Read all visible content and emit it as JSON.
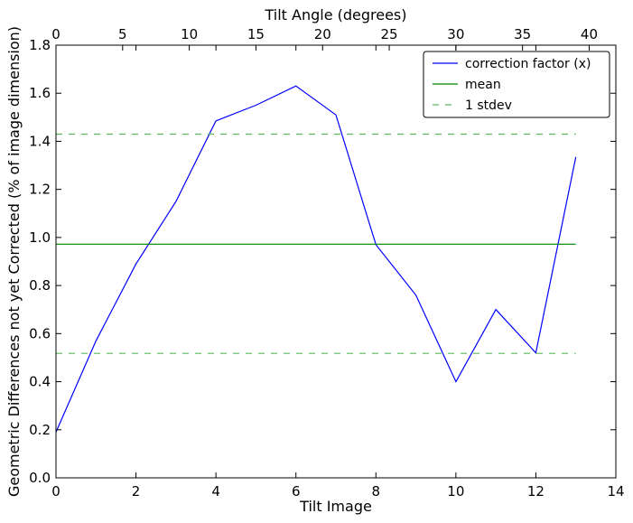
{
  "chart_data": {
    "type": "line",
    "xlabel": "Tilt Image",
    "ylabel": "Geometric Differences not yet Corrected (% of image dimension)",
    "top_xlabel": "Tilt Angle (degrees)",
    "xlim": [
      0,
      14
    ],
    "ylim": [
      0,
      1.8
    ],
    "top_xlim": [
      0,
      42
    ],
    "xticks": [
      0,
      2,
      4,
      6,
      8,
      10,
      12,
      14
    ],
    "yticks": [
      0.0,
      0.2,
      0.4,
      0.6,
      0.8,
      1.0,
      1.2,
      1.4,
      1.6,
      1.8
    ],
    "xtick_labels": [
      "0",
      "2",
      "4",
      "6",
      "8",
      "10",
      "12",
      "14"
    ],
    "ytick_labels": [
      "0.0",
      "0.2",
      "0.4",
      "0.6",
      "0.8",
      "1.0",
      "1.2",
      "1.4",
      "1.6",
      "1.8"
    ],
    "top_xticks": [
      0,
      5,
      10,
      15,
      20,
      25,
      30,
      35,
      40
    ],
    "top_xtick_labels": [
      "0",
      "5",
      "10",
      "15",
      "20",
      "25",
      "30",
      "35",
      "40"
    ],
    "grid": false,
    "legend_position": "top-right",
    "series": [
      {
        "name": "correction factor (x)",
        "color": "#0000ff",
        "style": "solid",
        "x": [
          0,
          1,
          2,
          3,
          4,
          5,
          6,
          7,
          8,
          9,
          10,
          11,
          12,
          13
        ],
        "y": [
          0.19,
          0.57,
          0.89,
          1.15,
          1.485,
          1.55,
          1.63,
          1.51,
          0.97,
          0.76,
          0.4,
          0.7,
          0.52,
          1.335
        ]
      },
      {
        "name": "mean",
        "color": "#008000",
        "style": "solid",
        "x": [
          0,
          13
        ],
        "y": [
          0.972,
          0.972
        ]
      },
      {
        "name": "1 stdev",
        "color": "#00a000",
        "style": "dashed",
        "x": [
          0,
          13
        ],
        "y": [
          1.43,
          1.43
        ]
      },
      {
        "name": "",
        "color": "#00a000",
        "style": "dashed",
        "x": [
          0,
          13
        ],
        "y": [
          0.518,
          0.518
        ]
      }
    ]
  }
}
